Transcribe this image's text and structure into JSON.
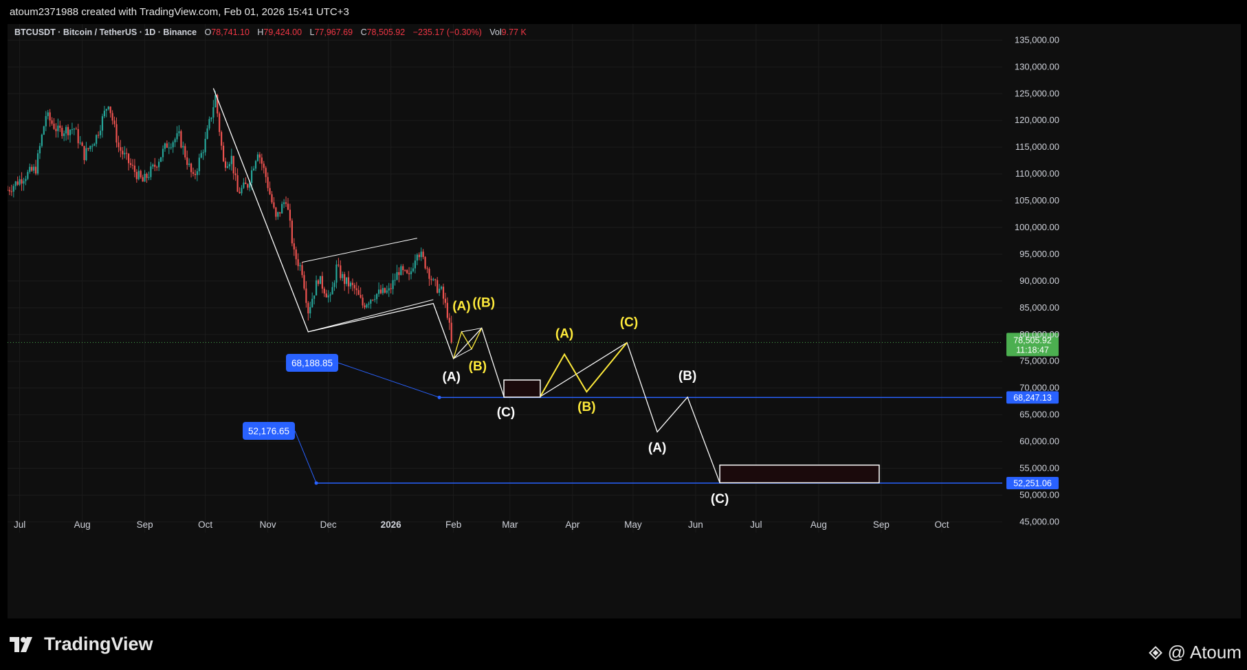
{
  "header": {
    "created_by": "atoum2371988 created with TradingView.com, Feb 01, 2026 15:41 UTC+3"
  },
  "legend": {
    "symbol": "BTCUSDT · Bitcoin / TetherUS · 1D · Binance",
    "o_label": "O",
    "o_value": "78,741.10",
    "h_label": "H",
    "h_value": "79,424.00",
    "l_label": "L",
    "l_value": "77,967.69",
    "c_label": "C",
    "c_value": "78,505.92",
    "change": "−235.17 (−0.30%)",
    "vol_label": "Vol",
    "vol_value": "9.77 K"
  },
  "footer": {
    "brand": "TradingView",
    "author": "@ Atoum"
  },
  "colors": {
    "up": "#26a69a",
    "down": "#ef5350",
    "bg": "#0f0f0f",
    "support": "#2962ff",
    "pattern_white": "#ffffff",
    "pattern_yellow": "#ffeb3b",
    "last_price": "#4caf50",
    "grid": "#1c1c1c"
  },
  "chart_data": {
    "type": "candlestick",
    "title": "BTCUSDT · Bitcoin / TetherUS · 1D · Binance",
    "y_scale": "linear",
    "ylim": [
      43000,
      138000
    ],
    "y_ticks": [
      45000,
      50000,
      55000,
      60000,
      65000,
      70000,
      75000,
      80000,
      85000,
      90000,
      95000,
      100000,
      105000,
      110000,
      115000,
      120000,
      125000,
      130000,
      135000
    ],
    "y_tick_labels": [
      "45,000.00",
      "50,000.00",
      "55,000.00",
      "60,000.00",
      "65,000.00",
      "70,000.00",
      "75,000.00",
      "80,000.00",
      "85,000.00",
      "90,000.00",
      "95,000.00",
      "100,000.00",
      "105,000.00",
      "110,000.00",
      "115,000.00",
      "120,000.00",
      "125,000.00",
      "130,000.00",
      "135,000.00"
    ],
    "xlim": [
      "2025-06-25",
      "2026-10-31"
    ],
    "x_ticks": [
      {
        "date": "2025-07-01",
        "label": "Jul"
      },
      {
        "date": "2025-08-01",
        "label": "Aug"
      },
      {
        "date": "2025-09-01",
        "label": "Sep"
      },
      {
        "date": "2025-10-01",
        "label": "Oct"
      },
      {
        "date": "2025-11-01",
        "label": "Nov"
      },
      {
        "date": "2025-12-01",
        "label": "Dec"
      },
      {
        "date": "2026-01-01",
        "label": "2026",
        "bold": true
      },
      {
        "date": "2026-02-01",
        "label": "Feb"
      },
      {
        "date": "2026-03-01",
        "label": "Mar"
      },
      {
        "date": "2026-04-01",
        "label": "Apr"
      },
      {
        "date": "2026-05-01",
        "label": "May"
      },
      {
        "date": "2026-06-01",
        "label": "Jun"
      },
      {
        "date": "2026-07-01",
        "label": "Jul"
      },
      {
        "date": "2026-08-01",
        "label": "Aug"
      },
      {
        "date": "2026-09-01",
        "label": "Sep"
      },
      {
        "date": "2026-10-01",
        "label": "Oct"
      }
    ],
    "price_path_keypoints": [
      [
        "2025-06-25",
        107000
      ],
      [
        "2025-07-03",
        109500
      ],
      [
        "2025-07-09",
        111000
      ],
      [
        "2025-07-14",
        121000
      ],
      [
        "2025-07-20",
        118000
      ],
      [
        "2025-07-28",
        118500
      ],
      [
        "2025-08-02",
        113500
      ],
      [
        "2025-08-08",
        117000
      ],
      [
        "2025-08-14",
        123500
      ],
      [
        "2025-08-19",
        115000
      ],
      [
        "2025-08-26",
        111000
      ],
      [
        "2025-08-31",
        108500
      ],
      [
        "2025-09-06",
        111500
      ],
      [
        "2025-09-12",
        115500
      ],
      [
        "2025-09-18",
        117000
      ],
      [
        "2025-09-25",
        109000
      ],
      [
        "2025-10-01",
        116000
      ],
      [
        "2025-10-06",
        124500
      ],
      [
        "2025-10-10",
        112000
      ],
      [
        "2025-10-14",
        113000
      ],
      [
        "2025-10-17",
        106500
      ],
      [
        "2025-10-22",
        108000
      ],
      [
        "2025-10-27",
        114500
      ],
      [
        "2025-10-31",
        109500
      ],
      [
        "2025-11-05",
        101500
      ],
      [
        "2025-11-10",
        105500
      ],
      [
        "2025-11-14",
        95000
      ],
      [
        "2025-11-18",
        92000
      ],
      [
        "2025-11-21",
        84500
      ],
      [
        "2025-11-26",
        90500
      ],
      [
        "2025-12-02",
        86500
      ],
      [
        "2025-12-05",
        92500
      ],
      [
        "2025-12-09",
        90000
      ],
      [
        "2025-12-14",
        88500
      ],
      [
        "2025-12-18",
        85500
      ],
      [
        "2025-12-24",
        87500
      ],
      [
        "2025-12-31",
        88000
      ],
      [
        "2026-01-05",
        92000
      ],
      [
        "2026-01-10",
        90500
      ],
      [
        "2026-01-14",
        96000
      ],
      [
        "2026-01-19",
        92500
      ],
      [
        "2026-01-22",
        89500
      ],
      [
        "2026-01-26",
        88000
      ],
      [
        "2026-01-29",
        84000
      ],
      [
        "2026-01-31",
        78505.92
      ]
    ],
    "last_price": 78505.92,
    "last_price_label": "78,505.92",
    "countdown": "11:18:47",
    "horizontal_lines": [
      {
        "price": 68247.13,
        "axis_label": "68,247.13",
        "start": "2026-01-25",
        "callout": "68,188.85"
      },
      {
        "price": 52251.06,
        "axis_label": "52,251.06",
        "start": "2025-11-25",
        "callout": "52,176.65"
      }
    ],
    "channel": [
      [
        [
          "2025-11-18",
          93500
        ],
        [
          "2026-01-14",
          98000
        ]
      ],
      [
        [
          "2025-11-21",
          80500
        ],
        [
          "2026-01-22",
          86500
        ]
      ]
    ],
    "white_path": [
      [
        "2025-10-05",
        126000
      ],
      [
        "2025-11-21",
        80500
      ],
      [
        "2026-01-22",
        85800
      ],
      [
        "2026-02-01",
        75500
      ],
      [
        "2026-02-15",
        81200
      ],
      [
        "2026-02-26",
        68400
      ],
      [
        "2026-03-16",
        68400
      ],
      [
        "2026-04-28",
        78500
      ],
      [
        "2026-05-13",
        61800
      ],
      [
        "2026-05-28",
        68300
      ],
      [
        "2026-06-13",
        52300
      ]
    ],
    "yellow_path": [
      [
        "2026-03-16",
        68400
      ],
      [
        "2026-03-28",
        76300
      ],
      [
        "2026-04-08",
        69300
      ],
      [
        "2026-04-28",
        78500
      ]
    ],
    "small_triangle": [
      [
        "2026-02-01",
        75500
      ],
      [
        "2026-02-05",
        80500
      ],
      [
        "2026-02-10",
        77300
      ],
      [
        "2026-02-15",
        81200
      ]
    ],
    "boxes": [
      {
        "start": "2026-02-26",
        "end": "2026-03-16",
        "top": 71500,
        "bottom": 68300
      },
      {
        "start": "2026-06-13",
        "end": "2026-08-31",
        "top": 55600,
        "bottom": 52300
      }
    ],
    "wave_labels": [
      {
        "text": "(A)",
        "color": "yellow",
        "date": "2026-02-05",
        "price": 84500
      },
      {
        "text": "((B)",
        "color": "yellow",
        "date": "2026-02-16",
        "price": 85200
      },
      {
        "text": "(B)",
        "color": "yellow",
        "date": "2026-02-13",
        "price": 73300
      },
      {
        "text": "(A)",
        "color": "white",
        "date": "2026-01-31",
        "price": 71300
      },
      {
        "text": "(C)",
        "color": "white",
        "date": "2026-02-27",
        "price": 64700
      },
      {
        "text": "(A)",
        "color": "yellow",
        "date": "2026-03-28",
        "price": 79400
      },
      {
        "text": "(B)",
        "color": "yellow",
        "date": "2026-04-08",
        "price": 65700
      },
      {
        "text": "(C)",
        "color": "yellow",
        "date": "2026-04-29",
        "price": 81500
      },
      {
        "text": "(B)",
        "color": "white",
        "date": "2026-05-28",
        "price": 71500
      },
      {
        "text": "(A)",
        "color": "white",
        "date": "2026-05-13",
        "price": 58100
      },
      {
        "text": "(C)",
        "color": "white",
        "date": "2026-06-13",
        "price": 48500
      }
    ]
  }
}
